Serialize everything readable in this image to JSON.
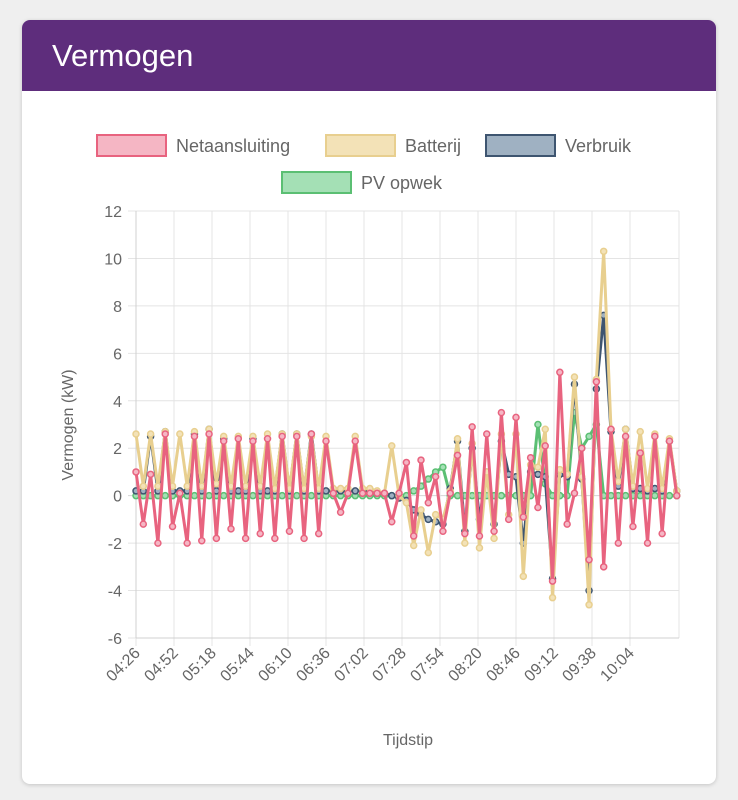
{
  "card": {
    "title": "Vermogen"
  },
  "chart_data": {
    "type": "line",
    "xlabel": "Tijdstip",
    "ylabel": "Vermogen (kW)",
    "ylim": [
      -6,
      12
    ],
    "yticks": [
      12,
      10,
      8,
      6,
      4,
      2,
      0,
      -2,
      -4,
      -6
    ],
    "xticks": [
      "04:26",
      "04:52",
      "05:18",
      "05:44",
      "06:10",
      "06:36",
      "07:02",
      "07:28",
      "07:54",
      "08:20",
      "08:46",
      "09:12",
      "09:38",
      "10:04"
    ],
    "grid": true,
    "legend_position": "top",
    "x": [
      "04:26",
      "04:31",
      "04:36",
      "04:41",
      "04:46",
      "04:51",
      "04:56",
      "05:01",
      "05:06",
      "05:11",
      "05:16",
      "05:21",
      "05:26",
      "05:31",
      "05:36",
      "05:41",
      "05:46",
      "05:51",
      "05:56",
      "06:01",
      "06:06",
      "06:11",
      "06:16",
      "06:21",
      "06:26",
      "06:31",
      "06:36",
      "06:41",
      "06:46",
      "06:51",
      "06:56",
      "07:01",
      "07:06",
      "07:11",
      "07:16",
      "07:21",
      "07:26",
      "07:31",
      "07:36",
      "07:41",
      "07:46",
      "07:51",
      "07:56",
      "08:01",
      "08:06",
      "08:11",
      "08:16",
      "08:21",
      "08:26",
      "08:31",
      "08:36",
      "08:41",
      "08:46",
      "08:51",
      "08:56",
      "09:01",
      "09:06",
      "09:11",
      "09:16",
      "09:21",
      "09:26",
      "09:31",
      "09:36",
      "09:41",
      "09:46",
      "09:51",
      "09:56",
      "10:01",
      "10:06",
      "10:11",
      "10:16",
      "10:21",
      "10:26",
      "10:31",
      "10:36"
    ],
    "series": [
      {
        "name": "Netaansluiting",
        "color": "#e8637f",
        "fill": "#f5b6c4",
        "values": [
          1.0,
          -1.2,
          0.9,
          -2.0,
          2.6,
          -1.3,
          0.1,
          -2.0,
          2.5,
          -1.9,
          2.6,
          -1.8,
          2.3,
          -1.4,
          2.4,
          -1.8,
          2.3,
          -1.6,
          2.4,
          -1.8,
          2.5,
          -1.5,
          2.5,
          -1.8,
          2.6,
          -1.6,
          2.3,
          0.1,
          -0.7,
          0.1,
          2.3,
          0.1,
          0.1,
          0.1,
          0.1,
          -1.1,
          0.1,
          1.4,
          -1.7,
          1.5,
          -0.3,
          0.8,
          -1.5,
          0.1,
          1.7,
          -1.6,
          2.9,
          -1.7,
          2.6,
          -1.5,
          3.5,
          -1.0,
          3.3,
          -0.9,
          1.6,
          -0.5,
          2.1,
          -3.6,
          5.2,
          -1.2,
          0.1,
          2.0,
          -2.7,
          4.8,
          -3.0,
          2.8,
          -2.0,
          2.5,
          -1.3,
          1.8,
          -2.0,
          2.5,
          -1.6,
          2.3,
          0.0
        ]
      },
      {
        "name": "Batterij",
        "color": "#e8cf8f",
        "fill": "#f3e2b7",
        "values": [
          2.6,
          0.4,
          2.6,
          0.4,
          2.7,
          0.4,
          2.6,
          0.4,
          2.7,
          0.4,
          2.8,
          0.5,
          2.5,
          0.4,
          2.5,
          0.4,
          2.5,
          0.4,
          2.6,
          0.3,
          2.6,
          0.3,
          2.6,
          0.3,
          2.5,
          0.3,
          2.5,
          0.3,
          0.3,
          0.3,
          2.5,
          0.3,
          0.3,
          0.2,
          0.1,
          2.1,
          0.0,
          -0.3,
          -2.1,
          -0.6,
          -2.4,
          -0.8,
          -1.0,
          0.2,
          2.4,
          -2.0,
          2.2,
          -2.2,
          1.0,
          -1.8,
          2.6,
          -0.8,
          2.6,
          -3.4,
          1.3,
          1.2,
          2.8,
          -4.3,
          1.1,
          0.9,
          5.0,
          0.8,
          -4.6,
          4.9,
          10.3,
          2.8,
          0.6,
          2.8,
          0.4,
          2.7,
          0.3,
          2.6,
          0.3,
          2.4,
          0.2
        ]
      },
      {
        "name": "Verbruik",
        "color": "#3e5570",
        "fill": "#9fb1c2",
        "values": [
          0.2,
          0.2,
          2.5,
          0.2,
          2.7,
          0.2,
          0.2,
          0.2,
          2.6,
          0.2,
          2.8,
          0.2,
          2.4,
          0.2,
          0.2,
          0.2,
          2.4,
          0.2,
          0.2,
          0.2,
          2.6,
          0.2,
          2.6,
          0.2,
          2.6,
          0.2,
          0.2,
          0.2,
          0.2,
          0.2,
          0.2,
          0.2,
          0.2,
          0.1,
          0.1,
          0.0,
          -0.1,
          -0.2,
          -0.6,
          -0.8,
          -1.0,
          -1.1,
          -1.2,
          0.3,
          2.3,
          -1.5,
          2.0,
          -1.0,
          1.0,
          -1.2,
          2.3,
          0.9,
          0.8,
          -2.0,
          1.0,
          0.9,
          0.8,
          -3.5,
          0.9,
          0.8,
          4.7,
          0.7,
          -4.0,
          4.5,
          7.6,
          2.7,
          0.4,
          2.8,
          0.3,
          0.3,
          0.2,
          0.3,
          0.2,
          2.3,
          0.2
        ]
      },
      {
        "name": "PV opwek",
        "color": "#5bbf73",
        "fill": "#a4e0b5",
        "values": [
          0,
          0,
          0,
          0,
          0,
          0,
          0,
          0,
          0,
          0,
          0,
          0,
          0,
          0,
          0,
          0,
          0,
          0,
          0,
          0,
          0,
          0,
          0,
          0,
          0,
          0,
          0,
          0,
          0,
          0,
          0,
          0,
          0,
          0,
          0,
          0,
          0,
          0,
          0.2,
          0.4,
          0.7,
          1.0,
          1.2,
          0,
          0,
          0,
          0,
          0,
          0,
          0,
          0,
          0,
          0,
          0,
          0,
          3.0,
          0.5,
          0,
          0,
          0,
          3.5,
          2.0,
          2.5,
          3.0,
          0,
          0,
          0,
          0,
          0,
          0,
          0,
          0,
          0,
          0,
          0
        ]
      }
    ]
  }
}
